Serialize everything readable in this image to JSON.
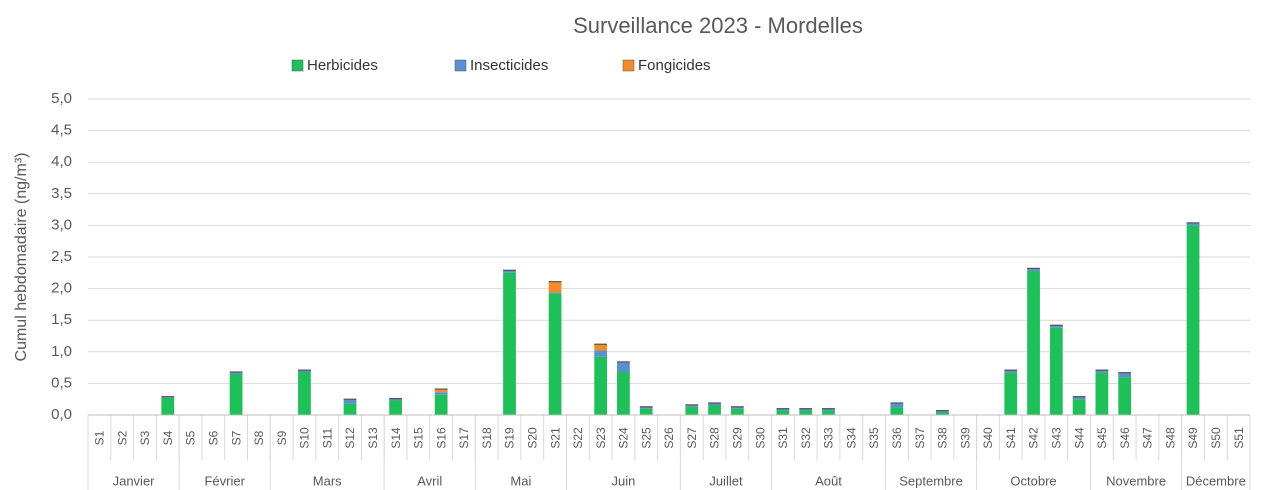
{
  "chart_data": {
    "type": "stacked_bar",
    "title": "Surveillance 2023 - Mordelles",
    "y_label": "Cumul hebdomadaire (ng/m³)",
    "groups": [
      {
        "name": "Janvier",
        "categories": [
          "S1",
          "S2",
          "S3",
          "S4"
        ]
      },
      {
        "name": "Février",
        "categories": [
          "S5",
          "S6",
          "S7",
          "S8"
        ]
      },
      {
        "name": "Mars",
        "categories": [
          "S9",
          "S10",
          "S11",
          "S12",
          "S13"
        ]
      },
      {
        "name": "Avril",
        "categories": [
          "S14",
          "S15",
          "S16",
          "S17"
        ]
      },
      {
        "name": "Mai",
        "categories": [
          "S18",
          "S19",
          "S20",
          "S21"
        ]
      },
      {
        "name": "Juin",
        "categories": [
          "S22",
          "S23",
          "S24",
          "S25",
          "S26"
        ]
      },
      {
        "name": "Juillet",
        "categories": [
          "S27",
          "S28",
          "S29",
          "S30"
        ]
      },
      {
        "name": "Août",
        "categories": [
          "S31",
          "S32",
          "S33",
          "S34",
          "S35"
        ]
      },
      {
        "name": "Septembre",
        "categories": [
          "S36",
          "S37",
          "S38",
          "S39"
        ]
      },
      {
        "name": "Octobre",
        "categories": [
          "S40",
          "S41",
          "S42",
          "S43",
          "S44"
        ]
      },
      {
        "name": "Novembre",
        "categories": [
          "S45",
          "S46",
          "S47",
          "S48"
        ]
      },
      {
        "name": "Décembre",
        "categories": [
          "S49",
          "S50",
          "S51"
        ]
      }
    ],
    "series": [
      {
        "name": "Herbicides",
        "color": "#1fbf5a",
        "values": [
          0,
          0,
          0,
          0.27,
          0,
          0,
          0.65,
          0,
          0,
          0.68,
          0,
          0.18,
          0,
          0.23,
          0,
          0.32,
          0,
          0,
          2.25,
          0,
          1.92,
          0,
          0.92,
          0.68,
          0.1,
          0,
          0.13,
          0.15,
          0.1,
          0,
          0.07,
          0.07,
          0.07,
          0,
          0,
          0.12,
          0,
          0.04,
          0,
          0,
          0.67,
          2.28,
          1.38,
          0.25,
          0.67,
          0.6,
          0,
          0,
          3.0,
          0,
          0
        ]
      },
      {
        "name": "Insecticides",
        "color": "#5b8fd0",
        "values": [
          0,
          0,
          0,
          0.02,
          0,
          0,
          0.03,
          0,
          0,
          0.03,
          0,
          0.07,
          0,
          0.03,
          0,
          0.04,
          0,
          0,
          0.04,
          0,
          0.02,
          0,
          0.1,
          0.16,
          0.03,
          0,
          0.03,
          0.04,
          0.03,
          0,
          0.03,
          0.03,
          0.03,
          0,
          0,
          0.07,
          0,
          0.03,
          0,
          0,
          0.04,
          0.04,
          0.04,
          0.04,
          0.04,
          0.07,
          0,
          0,
          0.04,
          0,
          0
        ]
      },
      {
        "name": "Fongicides",
        "color": "#f28c28",
        "values": [
          0,
          0,
          0,
          0,
          0,
          0,
          0,
          0,
          0,
          0,
          0,
          0,
          0,
          0,
          0,
          0.05,
          0,
          0,
          0,
          0,
          0.17,
          0,
          0.1,
          0,
          0,
          0,
          0,
          0,
          0,
          0,
          0,
          0,
          0,
          0,
          0,
          0,
          0,
          0,
          0,
          0,
          0,
          0,
          0,
          0,
          0,
          0,
          0,
          0,
          0,
          0,
          0
        ]
      }
    ],
    "ylim": [
      0,
      5
    ],
    "yticks": [
      {
        "value": 0,
        "label": "0,0"
      },
      {
        "value": 0.5,
        "label": "0,5"
      },
      {
        "value": 1,
        "label": "1,0"
      },
      {
        "value": 1.5,
        "label": "1,5"
      },
      {
        "value": 2,
        "label": "2,0"
      },
      {
        "value": 2.5,
        "label": "2,5"
      },
      {
        "value": 3,
        "label": "3,0"
      },
      {
        "value": 3.5,
        "label": "3,5"
      },
      {
        "value": 4,
        "label": "4,0"
      },
      {
        "value": 4.5,
        "label": "4,5"
      },
      {
        "value": 5,
        "label": "5,0"
      }
    ],
    "grid": true
  }
}
